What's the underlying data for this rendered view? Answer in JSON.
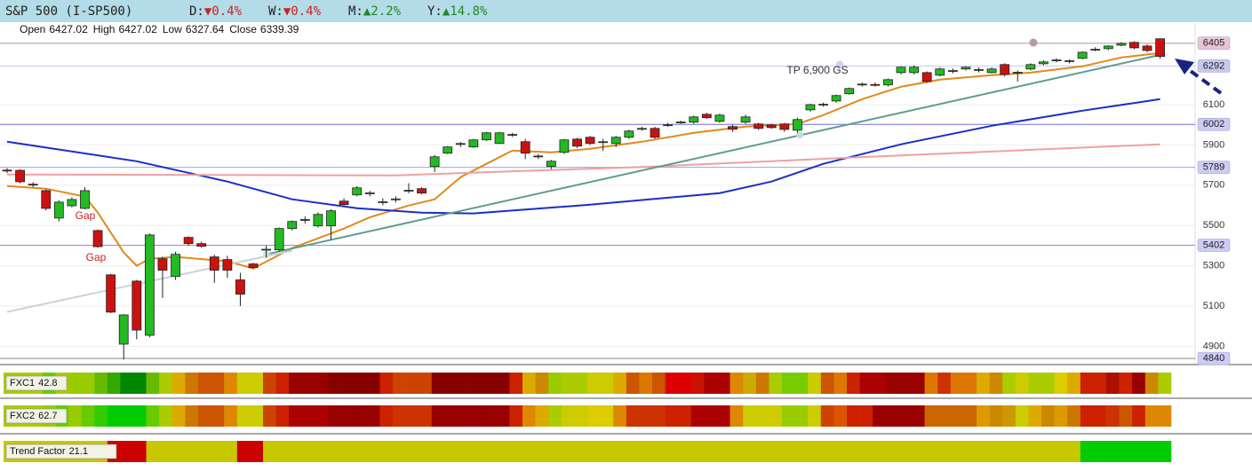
{
  "chart_data": {
    "type": "candlestick",
    "title": "S&P 500 (I-SP500)",
    "performance": [
      {
        "period": "D:",
        "change": "▼0.4%",
        "color": "#cc2222"
      },
      {
        "period": "W:",
        "change": "▼0.4%",
        "color": "#cc2222"
      },
      {
        "period": "M:",
        "change": "▲2.2%",
        "color": "#228822"
      },
      {
        "period": "Y:",
        "change": "▲14.8%",
        "color": "#228822"
      }
    ],
    "readout": [
      {
        "label": "Open",
        "value": 6427.02
      },
      {
        "label": "High",
        "value": 6427.02
      },
      {
        "label": "Low",
        "value": 6327.64
      },
      {
        "label": "Close",
        "value": 6339.39
      }
    ],
    "open": [
      5775,
      5774,
      5705,
      5673,
      5537,
      5598,
      5585,
      5475,
      5255,
      4911,
      5224,
      4955,
      5335,
      5247,
      5441,
      5410,
      5344,
      5331,
      5230,
      5309,
      5380,
      5379,
      5485,
      5528,
      5498,
      5498,
      5621,
      5652,
      5660,
      5616,
      5630,
      5672,
      5683,
      5793,
      5859,
      5905,
      5890,
      5925,
      5907,
      5950,
      5916,
      5845,
      5793,
      5863,
      5929,
      5938,
      5915,
      5907,
      5938,
      5980,
      5982,
      5999,
      6012,
      6013,
      6052,
      6017,
      5991,
      6013,
      6004,
      5999,
      6004,
      5973,
      6074,
      6100,
      6118,
      6154,
      6200,
      6200,
      6198,
      6259,
      6259,
      6259,
      6246,
      6267,
      6277,
      6272,
      6259,
      6299,
      6259,
      6277,
      6303,
      6320,
      6316,
      6330,
      6373,
      6378,
      6395,
      6409,
      6391,
      6427.02
    ],
    "high": [
      5785,
      5780,
      5715,
      5680,
      5625,
      5640,
      5690,
      5480,
      5260,
      5060,
      5230,
      5460,
      5345,
      5370,
      5445,
      5420,
      5355,
      5350,
      5265,
      5315,
      5400,
      5490,
      5525,
      5545,
      5565,
      5580,
      5635,
      5695,
      5672,
      5635,
      5645,
      5710,
      5690,
      5850,
      5895,
      5915,
      5930,
      5965,
      5965,
      5960,
      5930,
      5855,
      5825,
      5930,
      5935,
      5945,
      5930,
      5945,
      5975,
      5990,
      5990,
      6010,
      6020,
      6045,
      6060,
      6055,
      6000,
      6050,
      6010,
      6005,
      6010,
      6035,
      6105,
      6110,
      6150,
      6185,
      6210,
      6210,
      6230,
      6290,
      6295,
      6265,
      6285,
      6280,
      6290,
      6285,
      6285,
      6305,
      6270,
      6305,
      6320,
      6330,
      6325,
      6365,
      6385,
      6395,
      6410,
      6415,
      6400,
      6427.02
    ],
    "low": [
      5760,
      5710,
      5690,
      5575,
      5520,
      5590,
      5580,
      5390,
      5065,
      4835,
      4935,
      4945,
      5140,
      5230,
      5400,
      5390,
      5215,
      5240,
      5100,
      5285,
      5340,
      5370,
      5475,
      5510,
      5490,
      5430,
      5600,
      5645,
      5645,
      5600,
      5615,
      5660,
      5655,
      5765,
      5855,
      5890,
      5885,
      5920,
      5905,
      5940,
      5830,
      5830,
      5780,
      5855,
      5885,
      5900,
      5870,
      5890,
      5930,
      5970,
      5930,
      5990,
      6005,
      6005,
      6030,
      6010,
      5965,
      6005,
      5975,
      5980,
      5965,
      5960,
      6065,
      6090,
      6110,
      6150,
      6190,
      6190,
      6190,
      6250,
      6250,
      6210,
      6240,
      6255,
      6270,
      6260,
      6255,
      6240,
      6215,
      6270,
      6295,
      6310,
      6305,
      6325,
      6365,
      6370,
      6390,
      6375,
      6360,
      6327.64
    ],
    "close": [
      5772,
      5717,
      5702,
      5585,
      5616,
      5629,
      5673,
      5395,
      5070,
      5056,
      4981,
      5453,
      5278,
      5357,
      5410,
      5397,
      5278,
      5278,
      5159,
      5291,
      5382,
      5485,
      5520,
      5530,
      5555,
      5573,
      5604,
      5687,
      5662,
      5618,
      5632,
      5675,
      5661,
      5841,
      5890,
      5907,
      5925,
      5960,
      5960,
      5952,
      5859,
      5843,
      5819,
      5925,
      5894,
      5907,
      5916,
      5938,
      5969,
      5982,
      5938,
      6000,
      6014,
      6039,
      6035,
      6048,
      5978,
      6039,
      5982,
      5986,
      5977,
      6026,
      6100,
      6102,
      6145,
      6180,
      6202,
      6198,
      6224,
      6286,
      6286,
      6215,
      6277,
      6269,
      6286,
      6274,
      6277,
      6250,
      6261,
      6299,
      6312,
      6322,
      6318,
      6360,
      6375,
      6391,
      6404,
      6382,
      6369,
      6339.39
    ],
    "up_color": "#22bb22",
    "down_color": "#cc1111",
    "overlays": [
      {
        "color": "#e08a1e",
        "x": [
          0,
          3,
          6,
          7,
          9,
          10,
          11,
          13,
          17,
          19,
          22,
          26,
          28,
          31,
          33,
          35,
          37,
          39,
          42,
          45,
          49,
          53,
          57,
          61,
          63,
          66,
          69,
          72,
          76,
          79,
          83,
          86,
          89
        ],
        "values": [
          5696,
          5683,
          5643,
          5564,
          5366,
          5300,
          5335,
          5344,
          5322,
          5287,
          5388,
          5485,
          5541,
          5599,
          5630,
          5740,
          5806,
          5872,
          5863,
          5881,
          5916,
          5960,
          5991,
          6004,
          6048,
          6127,
          6189,
          6224,
          6246,
          6259,
          6290,
          6334,
          6356
        ]
      },
      {
        "color": "#1a2ec8",
        "x": [
          0,
          10,
          17,
          22,
          27,
          32,
          36,
          45,
          55,
          59,
          63,
          69,
          76,
          83,
          89
        ],
        "values": [
          5916,
          5819,
          5718,
          5630,
          5586,
          5564,
          5560,
          5603,
          5661,
          5718,
          5806,
          5903,
          5995,
          6070,
          6127
        ]
      },
      {
        "color": "#f0a0a0",
        "x": [
          0,
          30,
          50,
          65,
          89
        ],
        "values": [
          5753,
          5749,
          5793,
          5837,
          5903
        ]
      },
      {
        "color": "#5e9c8c",
        "x": [
          20,
          89
        ],
        "values": [
          5357,
          6347
        ]
      },
      {
        "color": "#c8d4d4",
        "x": [
          0,
          22
        ],
        "values": [
          5071,
          5375
        ]
      }
    ],
    "levels": [
      {
        "value": 6405,
        "color": "#b09aa5",
        "label_color": "#e8c4d4"
      },
      {
        "value": 6292,
        "color": "#c8c8f0",
        "label_color": "#c8c8f0"
      },
      {
        "value": 6002,
        "color": "#6f6fdd",
        "label_color": "#ccccf5"
      },
      {
        "value": 5789,
        "color": "#a0a0ee",
        "label_color": "#ccccf5"
      },
      {
        "value": 5402,
        "color": "#8f8fe0",
        "label_color": "#ccccf5"
      },
      {
        "value": 4840,
        "color": "#888888",
        "label_color": "#ccccf5"
      }
    ],
    "annotations": [
      {
        "text": "Gap",
        "color": "#cc2222"
      },
      {
        "text": "Gap",
        "color": "#cc2222"
      },
      {
        "text": "TP 6,900 GS",
        "color": "#333333"
      }
    ],
    "ylim": [
      4814,
      6505
    ],
    "yticks": [
      4900,
      5100,
      5300,
      5500,
      5700,
      5900,
      6100
    ],
    "grid": true,
    "indicators": [
      {
        "name": "FXC1",
        "value": 42.8,
        "colors": [
          "#aacc00",
          "#aacc00",
          "#aacc00",
          "#66cc00",
          "#aacc00",
          "#99cc00",
          "#99cc00",
          "#66bb00",
          "#33aa00",
          "#008800",
          "#008800",
          "#66bb00",
          "#aacc00",
          "#ddaa00",
          "#cc7700",
          "#cc5500",
          "#cc5500",
          "#dd8800",
          "#cccc00",
          "#cccc00",
          "#cc4400",
          "#cc2200",
          "#990000",
          "#990000",
          "#990000",
          "#880000",
          "#880000",
          "#880000",
          "#880000",
          "#cc2200",
          "#cc4400",
          "#cc4400",
          "#cc4400",
          "#880000",
          "#880000",
          "#880000",
          "#880000",
          "#880000",
          "#880000",
          "#cc2200",
          "#ddaa00",
          "#cc8800",
          "#99cc00",
          "#aacc00",
          "#aacc00",
          "#cccc00",
          "#cccc00",
          "#ddaa00",
          "#cc5500",
          "#dd7700",
          "#cc5500",
          "#dd0000",
          "#dd0000",
          "#cc1100",
          "#aa0000",
          "#aa0000",
          "#dd8800",
          "#ccaa00",
          "#cc7700",
          "#aacc00",
          "#77cc00",
          "#77cc00",
          "#cccc00",
          "#cc5500",
          "#dd7700",
          "#cc2200",
          "#aa0000",
          "#aa0000",
          "#990000",
          "#990000",
          "#990000",
          "#dd7700",
          "#cc3300",
          "#dd7700",
          "#dd7700",
          "#ddaa00",
          "#cc8800",
          "#aacc00",
          "#cccc00",
          "#aacc00",
          "#aacc00",
          "#ddcc00",
          "#ddaa00",
          "#cc2200",
          "#cc2200",
          "#aa1100",
          "#cc2200",
          "#990000",
          "#cc8800",
          "#aacc00"
        ]
      },
      {
        "name": "FXC2",
        "value": 62.7,
        "colors": [
          "#aacc00",
          "#aacc00",
          "#aacc00",
          "#99cc00",
          "#66cc00",
          "#99cc00",
          "#66cc00",
          "#33cc00",
          "#00cc00",
          "#00cc00",
          "#00cc00",
          "#66cc00",
          "#aacc00",
          "#ddaa00",
          "#cc7700",
          "#cc5500",
          "#cc5500",
          "#dd8800",
          "#cccc00",
          "#cccc00",
          "#cc4400",
          "#cc2200",
          "#aa0000",
          "#aa0000",
          "#aa0000",
          "#990000",
          "#990000",
          "#990000",
          "#990000",
          "#cc2200",
          "#cc3300",
          "#cc3300",
          "#cc3300",
          "#990000",
          "#990000",
          "#990000",
          "#990000",
          "#990000",
          "#990000",
          "#cc2200",
          "#dd8800",
          "#ddaa00",
          "#aacc00",
          "#cccc00",
          "#cccc00",
          "#ddcc00",
          "#ddcc00",
          "#dd8800",
          "#cc3300",
          "#cc3300",
          "#cc3300",
          "#cc2200",
          "#cc2200",
          "#aa0000",
          "#aa0000",
          "#aa0000",
          "#dd8800",
          "#cccc00",
          "#cccc00",
          "#cccc00",
          "#99cc00",
          "#99cc00",
          "#cccc00",
          "#cc4400",
          "#dd5500",
          "#cc2200",
          "#cc2200",
          "#990000",
          "#990000",
          "#990000",
          "#990000",
          "#cc6600",
          "#cc6600",
          "#cc6600",
          "#cc6600",
          "#dd9900",
          "#cc8800",
          "#cc9900",
          "#cccc00",
          "#ddaa00",
          "#cc8800",
          "#dd9900",
          "#cc7700",
          "#cc2200",
          "#cc2200",
          "#cc3300",
          "#cc5500",
          "#cc2200",
          "#dd8800",
          "#dd8800"
        ]
      },
      {
        "name": "Trend Factor",
        "value": 21.1,
        "colors": [
          "#c8c800",
          "#c8c800",
          "#c8c800",
          "#c8c800",
          "#c8c800",
          "#c8c800",
          "#c8c800",
          "#c8c800",
          "#cc0000",
          "#cc0000",
          "#cc0000",
          "#c8c800",
          "#c8c800",
          "#c8c800",
          "#c8c800",
          "#c8c800",
          "#c8c800",
          "#c8c800",
          "#cc0000",
          "#cc0000",
          "#c8c800",
          "#c8c800",
          "#c8c800",
          "#c8c800",
          "#c8c800",
          "#c8c800",
          "#c8c800",
          "#c8c800",
          "#c8c800",
          "#c8c800",
          "#c8c800",
          "#c8c800",
          "#c8c800",
          "#c8c800",
          "#c8c800",
          "#c8c800",
          "#c8c800",
          "#c8c800",
          "#c8c800",
          "#c8c800",
          "#c8c800",
          "#c8c800",
          "#c8c800",
          "#c8c800",
          "#c8c800",
          "#c8c800",
          "#c8c800",
          "#c8c800",
          "#c8c800",
          "#c8c800",
          "#c8c800",
          "#c8c800",
          "#c8c800",
          "#c8c800",
          "#c8c800",
          "#c8c800",
          "#c8c800",
          "#c8c800",
          "#c8c800",
          "#c8c800",
          "#c8c800",
          "#c8c800",
          "#c8c800",
          "#c8c800",
          "#c8c800",
          "#c8c800",
          "#c8c800",
          "#c8c800",
          "#c8c800",
          "#c8c800",
          "#c8c800",
          "#c8c800",
          "#c8c800",
          "#c8c800",
          "#c8c800",
          "#c8c800",
          "#c8c800",
          "#c8c800",
          "#c8c800",
          "#c8c800",
          "#c8c800",
          "#c8c800",
          "#c8c800",
          "#00cc00",
          "#00cc00",
          "#00cc00",
          "#00cc00",
          "#00cc00",
          "#00cc00",
          "#00cc00"
        ]
      }
    ]
  }
}
